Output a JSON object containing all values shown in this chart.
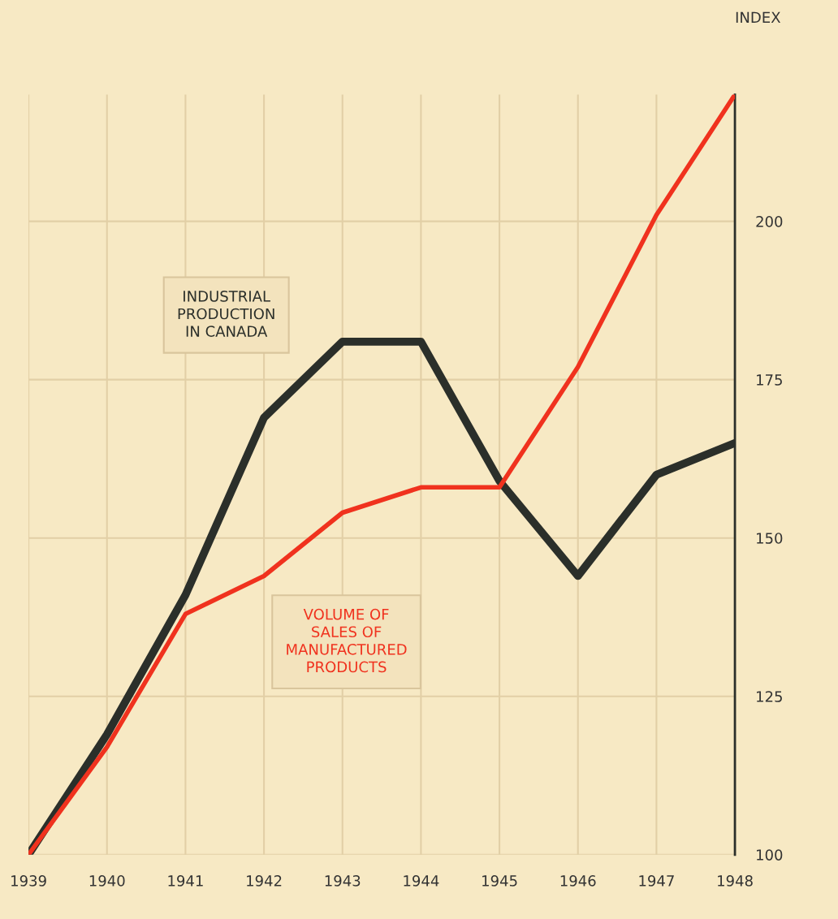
{
  "chart_data": {
    "type": "line",
    "ylabel": "INDEX",
    "x": [
      1939,
      1940,
      1941,
      1942,
      1943,
      1944,
      1945,
      1946,
      1947,
      1948
    ],
    "series": [
      {
        "name": "INDUSTRIAL\nPRODUCTION\nIN CANADA",
        "color": "#2b2f2a",
        "values": [
          100,
          119,
          141,
          169,
          181,
          181,
          159,
          144,
          160,
          165
        ]
      },
      {
        "name": "VOLUME OF\nSALES OF\nMANUFACTURED\nPRODUCTS",
        "color": "#f0321e",
        "values": [
          100,
          117,
          138,
          144,
          154,
          158,
          158,
          177,
          201,
          220
        ]
      }
    ],
    "xlim": [
      1939,
      1948
    ],
    "xticks": [
      1939,
      1940,
      1941,
      1942,
      1943,
      1944,
      1945,
      1946,
      1947,
      1948
    ],
    "ylim": [
      100,
      220
    ],
    "yticks": [
      100,
      125,
      150,
      175,
      200
    ],
    "grid": true,
    "legend": false,
    "marker": "none",
    "line_style": "solid"
  }
}
